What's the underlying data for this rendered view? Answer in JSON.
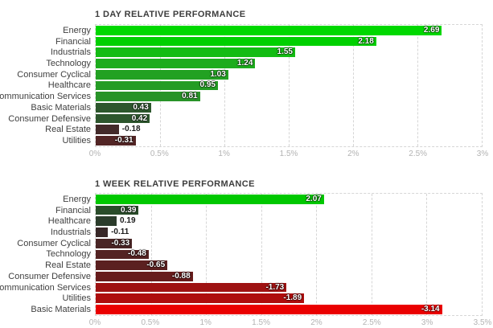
{
  "style": {
    "background": "#ffffff",
    "title_color": "#3d3d3d",
    "category_color": "#3f3f3f",
    "tick_color": "#b3b3b3",
    "grid_color": "#d6d6d6",
    "value_inside_color": "#ffffff",
    "value_outside_color": "#1b1b1b"
  },
  "chart_data": [
    {
      "type": "bar",
      "orientation": "horizontal",
      "title": "1 DAY RELATIVE PERFORMANCE",
      "categories": [
        "Energy",
        "Financial",
        "Industrials",
        "Technology",
        "Consumer Cyclical",
        "Healthcare",
        "Communication Services",
        "Basic Materials",
        "Consumer Defensive",
        "Real Estate",
        "Utilities"
      ],
      "values": [
        2.69,
        2.18,
        1.55,
        1.24,
        1.03,
        0.95,
        0.81,
        0.43,
        0.42,
        -0.18,
        -0.31
      ],
      "bar_colors": [
        "#00d800",
        "#00d000",
        "#13bc13",
        "#1dac1d",
        "#22a122",
        "#249c24",
        "#289328",
        "#2d572d",
        "#2d562d",
        "#432a2a",
        "#522525"
      ],
      "x_ticks": [
        "0%",
        "0.5%",
        "1%",
        "1.5%",
        "2%",
        "2.5%",
        "3%"
      ],
      "x_max_percent": 3,
      "xlim": [
        0,
        3
      ],
      "grid": true,
      "legend": "none",
      "bar_length_basis": "absolute value of performance"
    },
    {
      "type": "bar",
      "orientation": "horizontal",
      "title": "1 WEEK RELATIVE PERFORMANCE",
      "categories": [
        "Energy",
        "Financial",
        "Healthcare",
        "Industrials",
        "Consumer Cyclical",
        "Technology",
        "Real Estate",
        "Consumer Defensive",
        "Communication Services",
        "Utilities",
        "Basic Materials"
      ],
      "values": [
        2.07,
        0.39,
        0.19,
        -0.11,
        -0.33,
        -0.48,
        -0.65,
        -0.88,
        -1.73,
        -1.89,
        -3.14
      ],
      "bar_colors": [
        "#00c800",
        "#2a4c2a",
        "#2b3c2b",
        "#372727",
        "#492525",
        "#532222",
        "#5b2020",
        "#671c1c",
        "#9e1212",
        "#ae0d0d",
        "#ea0000"
      ],
      "x_ticks": [
        "0%",
        "0.5%",
        "1%",
        "1.5%",
        "2%",
        "2.5%",
        "3%",
        "3.5%"
      ],
      "x_max_percent": 3.5,
      "xlim": [
        0,
        3.5
      ],
      "grid": true,
      "legend": "none",
      "bar_length_basis": "absolute value of performance"
    }
  ]
}
